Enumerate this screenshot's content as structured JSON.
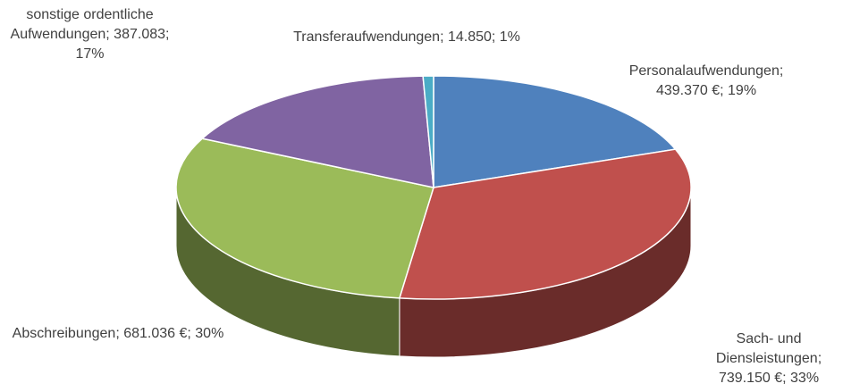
{
  "chart_data": {
    "type": "pie3d",
    "categories": [
      "Personalaufwendungen",
      "Sach- und Diensleistungen",
      "Abschreibungen",
      "sonstige ordentliche Aufwendungen",
      "Transferaufwendungen"
    ],
    "values": [
      439370,
      739150,
      681036,
      387083,
      14850
    ],
    "value_labels": [
      "439.370 €",
      "739.150 €",
      "681.036 €",
      "387.083",
      "14.850"
    ],
    "percentages": [
      19,
      33,
      30,
      17,
      1
    ],
    "percentage_labels": [
      "19%",
      "33%",
      "30%",
      "17%",
      "1%"
    ],
    "separator": "; ",
    "colors": [
      "#4f81bd",
      "#c0504d",
      "#9bbb59",
      "#8064a2",
      "#4bacc6"
    ]
  }
}
